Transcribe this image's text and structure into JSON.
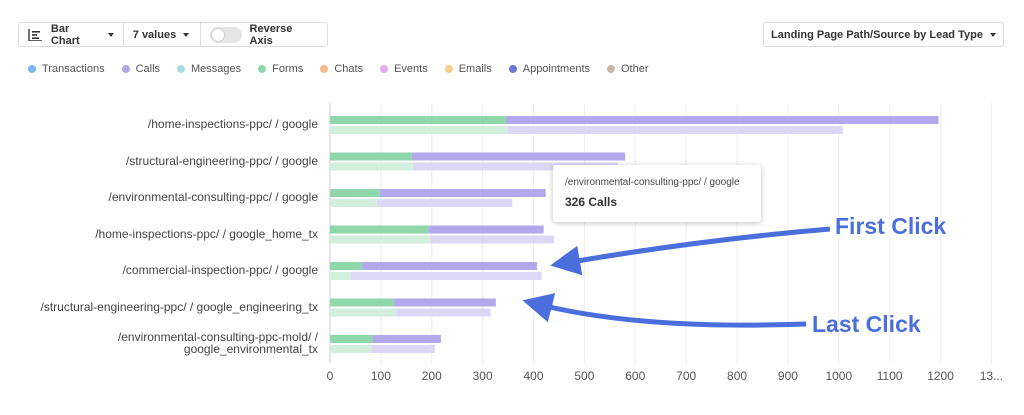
{
  "toolbar": {
    "chart_type": "Bar Chart",
    "values_count": "7 values",
    "reverse_axis": "Reverse Axis",
    "dimension": "Landing Page Path/Source by Lead Type"
  },
  "chart_data": {
    "type": "bar",
    "orientation": "horizontal",
    "stacked": true,
    "categories": [
      "/home-inspections-ppc/ / google",
      "/structural-engineering-ppc/ / google",
      "/environmental-consulting-ppc/ / google",
      "/home-inspections-ppc/ / google_home_tx",
      "/commercial-inspection-ppc/ / google",
      "/structural-engineering-ppc/ / google_engineering_tx",
      "/environmental-consulting-ppc-mold/ /\ngoogle_environmental_tx"
    ],
    "series": [
      {
        "name": "Transactions",
        "color": "#7fb8f0"
      },
      {
        "name": "Calls",
        "color": "#b3a8ec",
        "color_last": "#dcd7f5",
        "values": [
          850,
          419,
          326,
          227,
          344,
          200,
          134
        ],
        "values_last": [
          658,
          402,
          266,
          243,
          375,
          186,
          125
        ]
      },
      {
        "name": "Messages",
        "color": "#a8dde3"
      },
      {
        "name": "Forms",
        "color": "#8fd6ab",
        "color_last": "#d2eedd",
        "values": [
          346,
          161,
          98,
          193,
          63,
          126,
          84
        ],
        "values_last": [
          350,
          163,
          92,
          197,
          41,
          130,
          81
        ]
      },
      {
        "name": "Chats",
        "color": "#f4b98c"
      },
      {
        "name": "Events",
        "color": "#e6a8e6"
      },
      {
        "name": "Emails",
        "color": "#f5cf8f"
      },
      {
        "name": "Appointments",
        "color": "#6b79dd"
      },
      {
        "name": "Other",
        "color": "#c8b8a8"
      }
    ],
    "stack_order": [
      3,
      1
    ],
    "xlim": [
      0,
      1300
    ],
    "xticks": [
      0,
      100,
      200,
      300,
      400,
      500,
      600,
      700,
      800,
      900,
      1000,
      1100,
      1200,
      {
        "value": 1300,
        "label": "13..."
      }
    ],
    "grid": true,
    "tooltip": {
      "label": "/environmental-consulting-ppc/ / google",
      "text": "326 Calls"
    },
    "annotations": [
      "First Click",
      "Last Click"
    ]
  }
}
